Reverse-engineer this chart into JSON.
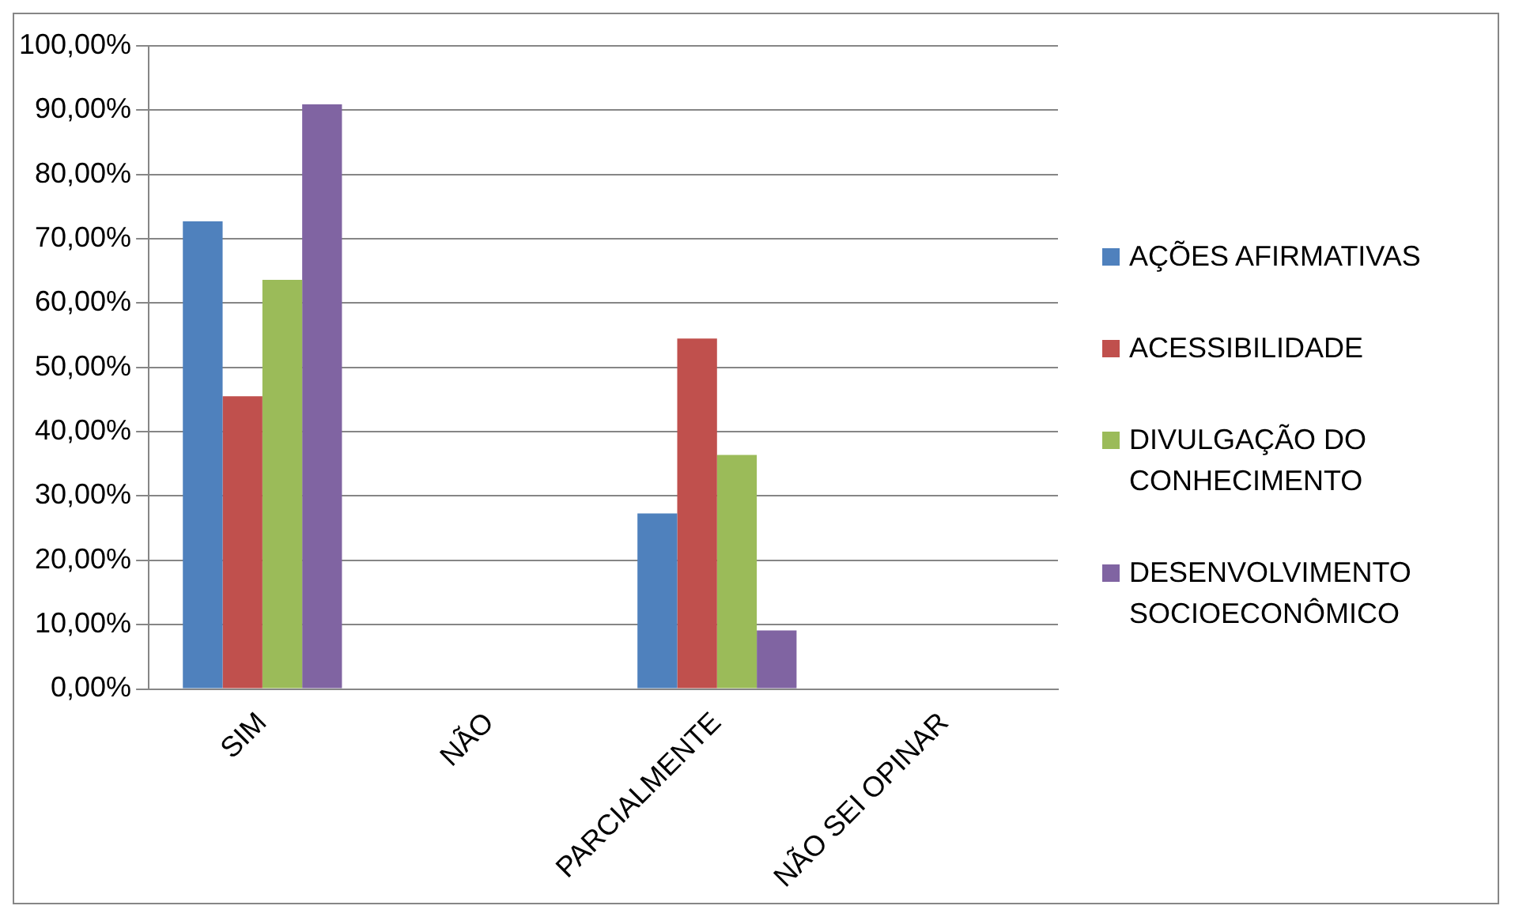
{
  "chart_data": {
    "type": "bar",
    "categories": [
      "SIM",
      "NÃO",
      "PARCIALMENTE",
      "NÃO SEI OPINAR"
    ],
    "series": [
      {
        "name": "AÇÕES AFIRMATIVAS",
        "color": "#4f81bd",
        "values": [
          72.7,
          0,
          27.3,
          0
        ]
      },
      {
        "name": "ACESSIBILIDADE",
        "color": "#c0504d",
        "values": [
          45.5,
          0,
          54.5,
          0
        ]
      },
      {
        "name": "DIVULGAÇÃO DO CONHECIMENTO",
        "color": "#9bbb59",
        "values": [
          63.6,
          0,
          36.4,
          0
        ]
      },
      {
        "name": "DESENVOLVIMENTO SOCIOECONÔMICO",
        "color": "#8064a2",
        "values": [
          90.9,
          0,
          9.1,
          0
        ]
      }
    ],
    "ylim": [
      0,
      100
    ],
    "yticks": [
      {
        "value": 0,
        "label": "0,00%"
      },
      {
        "value": 10,
        "label": "10,00%"
      },
      {
        "value": 20,
        "label": "20,00%"
      },
      {
        "value": 30,
        "label": "30,00%"
      },
      {
        "value": 40,
        "label": "40,00%"
      },
      {
        "value": 50,
        "label": "50,00%"
      },
      {
        "value": 60,
        "label": "60,00%"
      },
      {
        "value": 70,
        "label": "70,00%"
      },
      {
        "value": 80,
        "label": "80,00%"
      },
      {
        "value": 90,
        "label": "90,00%"
      },
      {
        "value": 100,
        "label": "100,00%"
      }
    ],
    "grid": "y",
    "legend": "right"
  }
}
